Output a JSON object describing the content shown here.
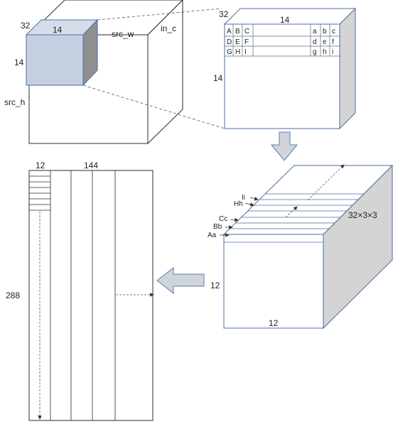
{
  "colors": {
    "edge": "#2b2b2b",
    "blue_edge": "#4a6fa5",
    "patch_fill": "#c6cfe0",
    "side_gray": "#8f8f8f",
    "right_face": "#d4d4d4",
    "arrow_fill": "#d0d4db",
    "arrow_edge": "#5b7bb0"
  },
  "input_cube": {
    "patch_depth_label": "32",
    "patch_width_label": "14",
    "patch_height_label": "14",
    "width_label": "src_w",
    "channels_label": "in_c",
    "height_label": "src_h"
  },
  "patch_view": {
    "depth_label": "32",
    "width_label": "14",
    "height_label": "14",
    "rows": [
      [
        "A",
        "B",
        "C",
        "a",
        "b",
        "c"
      ],
      [
        "D",
        "E",
        "F",
        "d",
        "e",
        "f"
      ],
      [
        "G",
        "H",
        "I",
        "g",
        "h",
        "i"
      ]
    ]
  },
  "col_cube": {
    "slice_labels": [
      "Ii",
      "Hh",
      "Cc",
      "Bb",
      "Aa"
    ],
    "depth_label": "32×3×3",
    "height_label": "12",
    "width_label": "12"
  },
  "matrix": {
    "col_label": "12",
    "width_label": "144",
    "height_label": "288"
  }
}
